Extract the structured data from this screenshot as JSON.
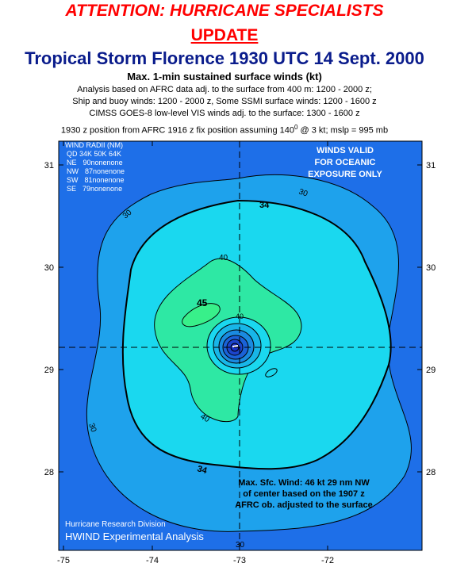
{
  "header": {
    "alert": "ATTENTION: HURRICANE SPECIALISTS",
    "update": "UPDATE",
    "storm_title": "Tropical Storm Florence 1930 UTC 14 Sept. 2000",
    "subtitle": "Max. 1-min sustained surface winds (kt)",
    "analysis_lines": [
      "Analysis based on AFRC data adj. to the surface from 400 m: 1200 - 2000 z;",
      "Ship and buoy winds: 1200 - 2000 z, Some SSMI surface winds: 1200 - 1600 z",
      "CIMSS GOES-8 low-level VIS winds adj. to the surface: 1300 - 1600 z"
    ],
    "position_line": "1930 z position from AFRC 1916 z fix position assuming 140",
    "position_sup": "0",
    "position_tail": " @ 3 kt; mslp = 995 mb"
  },
  "wind_radii": {
    "title": "WIND RADII (NM)",
    "header": "QD 34K 50K 64K",
    "rows": [
      {
        "qd": "NE",
        "text": "90nonenone"
      },
      {
        "qd": "NW",
        "text": "87nonenone"
      },
      {
        "qd": "SW",
        "text": "81nonenone"
      },
      {
        "qd": "SE",
        "text": "79nonenone"
      }
    ]
  },
  "valid_note": [
    "WINDS VALID",
    "FOR OCEANIC",
    "EXPOSURE ONLY"
  ],
  "max_wind_note": [
    "Max. Sfc. Wind: 46 kt 29 nm NW",
    "of center based on the 1907 z",
    "AFRC  ob. adjusted to the surface"
  ],
  "credit": {
    "org": "Hurricane Research Division",
    "product": "HWIND Experimental Analysis"
  },
  "axes": {
    "lon_ticks": [
      "-75",
      "-74",
      "-73",
      "-72"
    ],
    "lat_ticks": [
      "31",
      "30",
      "29",
      "28"
    ]
  },
  "contour_labels": [
    "30",
    "30",
    "30",
    "30",
    "34",
    "34",
    "40",
    "40",
    "40",
    "45"
  ],
  "colors": {
    "outer": "#1e6fe8",
    "band30": "#1ea2ec",
    "band34": "#1ad8ef",
    "band40": "#2ee8a4",
    "band45": "#38f08a",
    "core": "#1830c8"
  }
}
